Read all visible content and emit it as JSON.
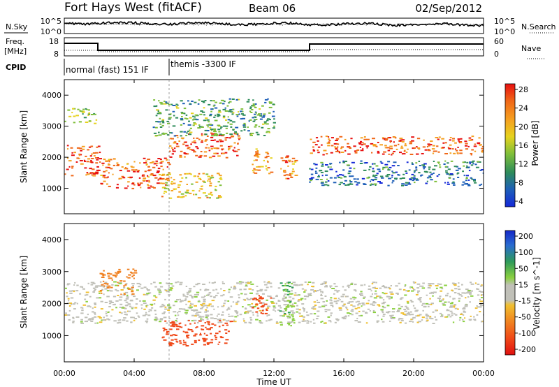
{
  "header": {
    "radar": "Fort Hays West (fitACF)",
    "beam": "Beam 06",
    "date": "02/Sep/2012"
  },
  "noise_panel": {
    "left_label": "N.Sky",
    "right_label": "N.Search",
    "left_ticks": [
      "10^5",
      "10^0"
    ],
    "right_ticks": [
      "10^5",
      "10^0"
    ]
  },
  "freq_panel": {
    "left_label_1": "Freq.",
    "left_label_2": "[MHz]",
    "left_ticks": [
      "18",
      "8"
    ],
    "right_label": "Nave",
    "right_ticks": [
      "60",
      "0"
    ]
  },
  "cpid": {
    "label": "CPID",
    "modes": [
      {
        "name": "normal (fast) 151 IF",
        "start_hour": 0,
        "end_hour": 6
      },
      {
        "name": "themis -3300 IF",
        "start_hour": 6,
        "end_hour": 24
      }
    ]
  },
  "chart_data": [
    {
      "type": "heatmap",
      "title": "",
      "xlabel": "",
      "ylabel": "Slant Range [km]",
      "yticks": [
        "4000",
        "3000",
        "2000",
        "1000"
      ],
      "ylim": [
        180,
        4500
      ],
      "xlim": [
        0,
        24
      ],
      "colorbar": {
        "label": "Power [dB]",
        "ticks": [
          "28",
          "24",
          "20",
          "16",
          "12",
          "8",
          "4"
        ],
        "colors": [
          "#1428d8",
          "#1e5fb8",
          "#2e8c5a",
          "#7fbf3a",
          "#e6d21e",
          "#f5a020",
          "#f06818",
          "#e81010"
        ]
      },
      "regions": [
        {
          "feature": "ionospheric band",
          "x": [
            0,
            2
          ],
          "y": [
            1400,
            2400
          ],
          "level": 27
        },
        {
          "feature": "rising band",
          "x": [
            2,
            6
          ],
          "y": [
            1000,
            2000
          ],
          "level": 25
        },
        {
          "feature": "main band",
          "x": [
            6,
            10
          ],
          "y": [
            2000,
            2800
          ],
          "level": 26
        },
        {
          "feature": "patch",
          "x": [
            10.7,
            11.8
          ],
          "y": [
            1400,
            2300
          ],
          "level": 22
        },
        {
          "feature": "patch",
          "x": [
            12.3,
            13.2
          ],
          "y": [
            1300,
            2200
          ],
          "level": 24
        },
        {
          "feature": "main band",
          "x": [
            14,
            24
          ],
          "y": [
            2100,
            2700
          ],
          "level": 26
        },
        {
          "feature": "lower echoes",
          "x": [
            5.5,
            9
          ],
          "y": [
            700,
            1500
          ],
          "level": 18
        },
        {
          "feature": "upper scatter",
          "x": [
            0,
            1.8
          ],
          "y": [
            3100,
            3600
          ],
          "level": 14
        },
        {
          "feature": "weak scatter",
          "x": [
            14,
            24
          ],
          "y": [
            1100,
            1900
          ],
          "level": 6
        },
        {
          "feature": "weak scatter",
          "x": [
            5,
            12
          ],
          "y": [
            2700,
            3900
          ],
          "level": 10
        }
      ]
    },
    {
      "type": "heatmap",
      "title": "",
      "xlabel": "Time UT",
      "ylabel": "Slant Range [km]",
      "xticks": [
        "00:00",
        "04:00",
        "08:00",
        "12:00",
        "16:00",
        "20:00",
        "00:00"
      ],
      "yticks": [
        "4000",
        "3000",
        "2000",
        "1000"
      ],
      "ylim": [
        180,
        4500
      ],
      "xlim": [
        0,
        24
      ],
      "colorbar": {
        "label": "Velocity [m s^-1]",
        "ticks": [
          "200",
          "100",
          "50",
          "15",
          "-15",
          "-50",
          "-100",
          "-200"
        ],
        "colors": [
          "#1428c8",
          "#2a6cd0",
          "#2e9a5a",
          "#8ad040",
          "#c0c0b8",
          "#f0c030",
          "#f08020",
          "#f04818",
          "#e01010"
        ]
      },
      "regions": [
        {
          "feature": "ground scatter",
          "x": [
            0,
            24
          ],
          "y": [
            1400,
            2700
          ],
          "velocity": 0
        },
        {
          "feature": "lower echoes",
          "x": [
            5.5,
            9.5
          ],
          "y": [
            700,
            1500
          ],
          "velocity": -150
        },
        {
          "feature": "patch",
          "x": [
            10.7,
            11.8
          ],
          "y": [
            1700,
            2300
          ],
          "velocity": -200
        },
        {
          "feature": "patch",
          "x": [
            12.3,
            13.2
          ],
          "y": [
            1200,
            2700
          ],
          "velocity": 40
        },
        {
          "feature": "patch",
          "x": [
            2,
            4
          ],
          "y": [
            2300,
            3100
          ],
          "velocity": -80
        }
      ]
    }
  ]
}
